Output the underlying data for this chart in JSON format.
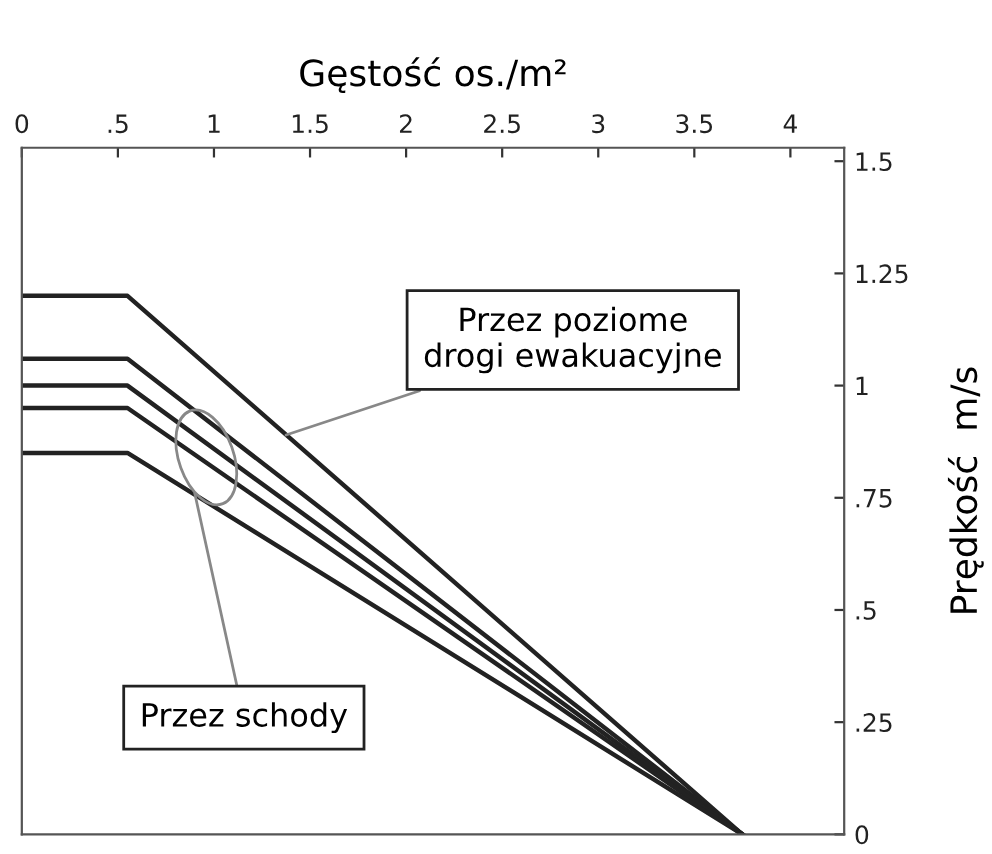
{
  "chart_data": {
    "type": "line",
    "xlabel": "Gęstość os./m²",
    "ylabel": "Prędkość  m/s",
    "xlim": [
      0,
      4.28
    ],
    "ylim": [
      0,
      1.53
    ],
    "xticks": [
      0,
      {
        "value": 0.5,
        "label": ".5"
      },
      1,
      1.5,
      2,
      2.5,
      3,
      3.5,
      4
    ],
    "yticks": [
      0,
      {
        "value": 0.25,
        "label": ".25"
      },
      {
        "value": 0.5,
        "label": ".5"
      },
      {
        "value": 0.75,
        "label": ".75"
      },
      1,
      1.25,
      1.5
    ],
    "grid": false,
    "legend": false,
    "marker": "none",
    "line_style": "solid",
    "series": [
      {
        "color": "#222222",
        "x": [
          0,
          0.55,
          3.75
        ],
        "values": [
          1.2,
          1.2,
          0
        ]
      },
      {
        "color": "#222222",
        "x": [
          0,
          0.55,
          3.75
        ],
        "values": [
          1.06,
          1.06,
          0
        ]
      },
      {
        "color": "#222222",
        "x": [
          0,
          0.55,
          3.75
        ],
        "values": [
          1.0,
          1.0,
          0
        ]
      },
      {
        "color": "#222222",
        "x": [
          0,
          0.55,
          3.75
        ],
        "values": [
          0.95,
          0.95,
          0
        ]
      },
      {
        "color": "#222222",
        "x": [
          0,
          0.55,
          3.75
        ],
        "values": [
          0.85,
          0.85,
          0
        ]
      }
    ],
    "annotations": [
      {
        "text": "Przez poziome\ndrogi ewakuacyjne",
        "x": 1.375,
        "y": 0.89
      },
      {
        "text": "Przez schody",
        "x": 0.9,
        "y": 0.76
      }
    ]
  }
}
